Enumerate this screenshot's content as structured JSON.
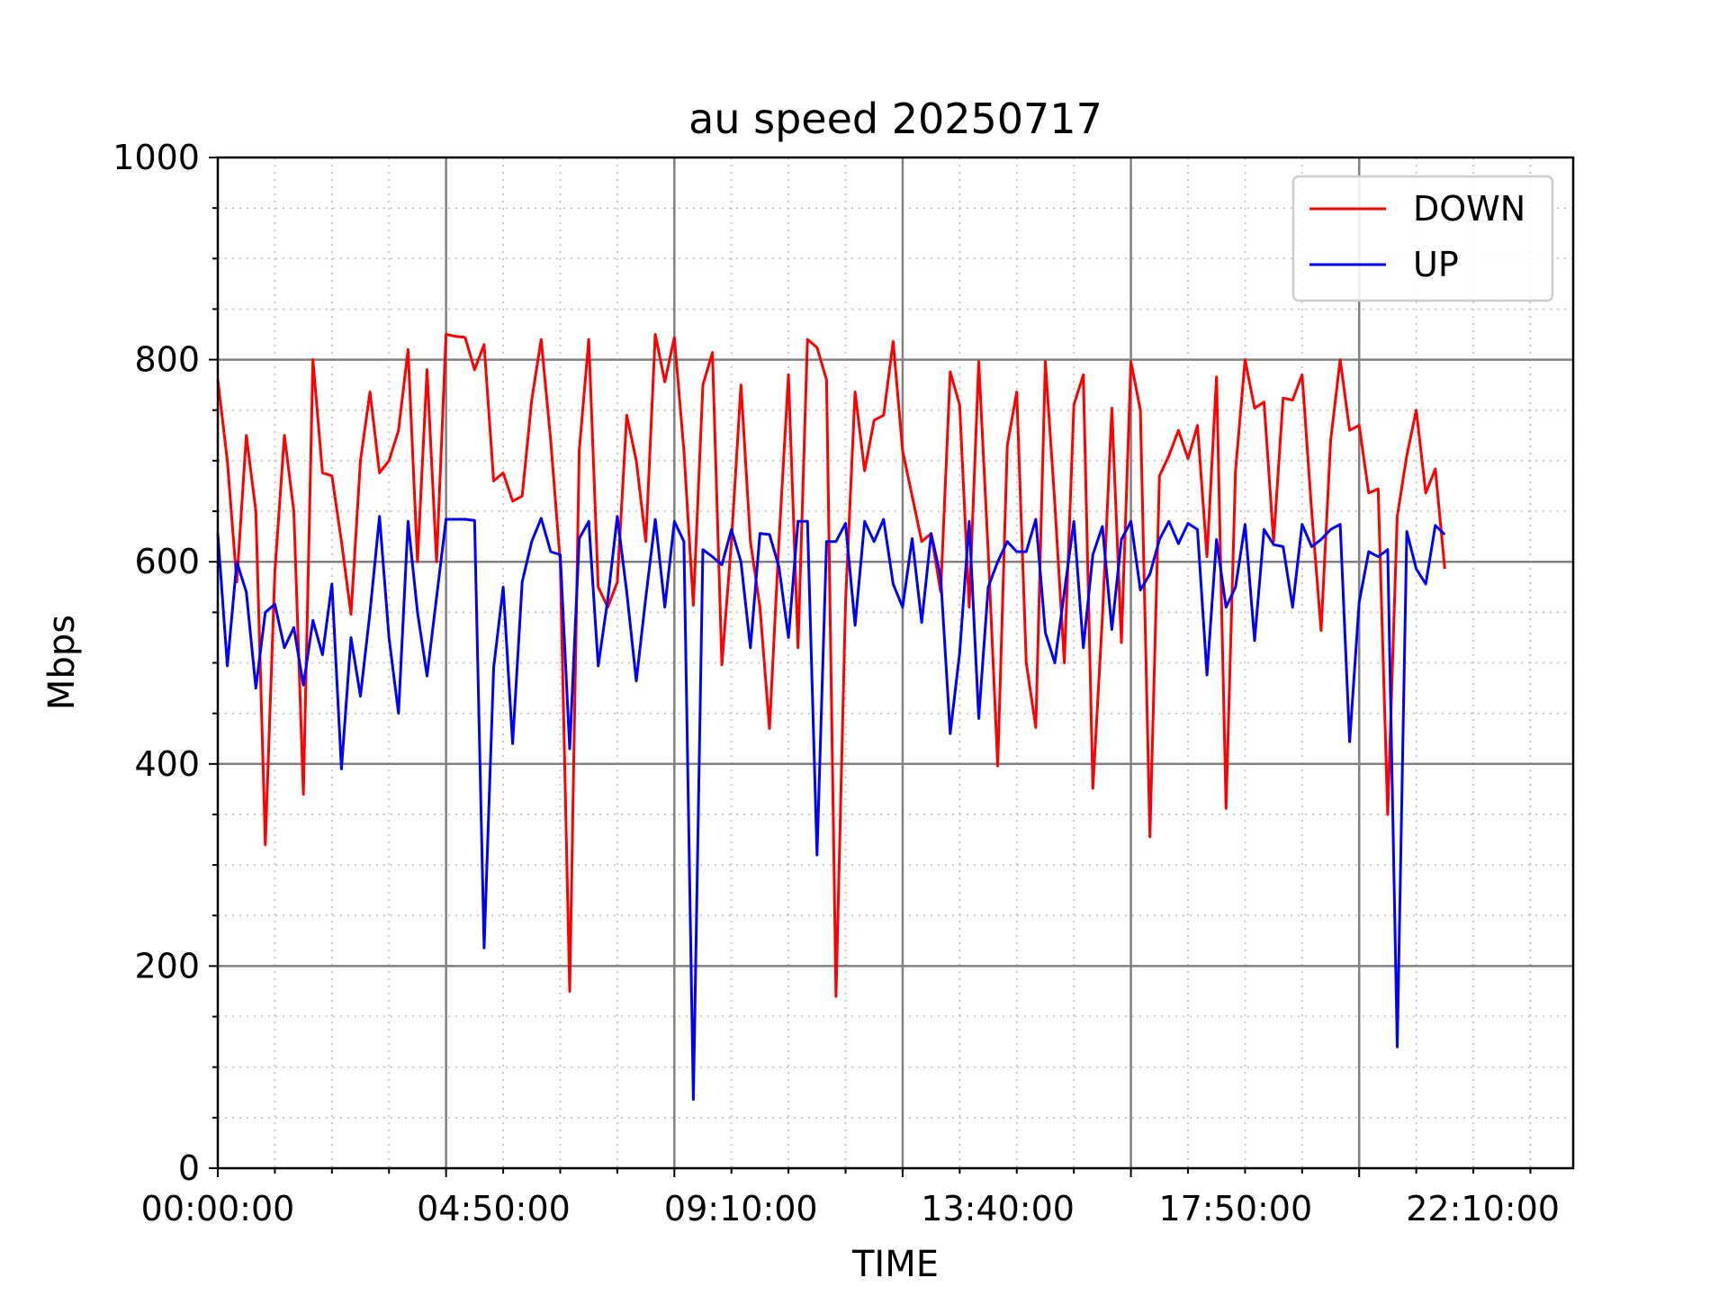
{
  "chart_data": {
    "type": "line",
    "title": "au speed 20250717",
    "xlabel": "TIME",
    "ylabel": "Mbps",
    "ylim": [
      0,
      1000
    ],
    "xlim": [
      0,
      1425
    ],
    "x_unit": "minutes since 00:00:00",
    "x_tick_labels": [
      "00:00:00",
      "04:50:00",
      "09:10:00",
      "13:40:00",
      "17:50:00",
      "22:10:00"
    ],
    "x_tick_minutes": [
      0,
      290,
      550,
      820,
      1070,
      1330
    ],
    "x_major_grid_minutes": [
      0,
      240,
      480,
      720,
      960,
      1200,
      1425
    ],
    "y_ticks": [
      0,
      200,
      400,
      600,
      800,
      1000
    ],
    "grid": true,
    "legend_placement": "upper-right",
    "colors": {
      "DOWN": "#ff0000",
      "UP": "#0000ff"
    },
    "series": [
      {
        "name": "DOWN",
        "x": [
          0,
          10,
          20,
          30,
          40,
          50,
          60,
          70,
          80,
          90,
          100,
          110,
          120,
          130,
          140,
          150,
          160,
          170,
          180,
          190,
          200,
          210,
          220,
          230,
          240,
          250,
          260,
          270,
          280,
          290,
          300,
          310,
          320,
          330,
          340,
          350,
          360,
          370,
          380,
          390,
          400,
          410,
          420,
          430,
          440,
          450,
          460,
          470,
          480,
          490,
          500,
          510,
          520,
          530,
          540,
          550,
          560,
          570,
          580,
          590,
          600,
          610,
          620,
          630,
          640,
          650,
          660,
          670,
          680,
          690,
          700,
          710,
          720,
          730,
          740,
          750,
          760,
          770,
          780,
          790,
          800,
          810,
          820,
          830,
          840,
          850,
          860,
          870,
          880,
          890,
          900,
          910,
          920,
          930,
          940,
          950,
          960,
          970,
          980,
          990,
          1000,
          1010,
          1020,
          1030,
          1040,
          1050,
          1060,
          1070,
          1080,
          1090,
          1100,
          1110,
          1120,
          1130,
          1140,
          1150,
          1160,
          1170,
          1180,
          1190,
          1200,
          1210,
          1220,
          1230,
          1240,
          1250,
          1260,
          1270,
          1280,
          1290
        ],
        "values": [
          780,
          700,
          580,
          725,
          650,
          320,
          590,
          725,
          650,
          370,
          800,
          688,
          685,
          620,
          548,
          700,
          768,
          688,
          700,
          730,
          810,
          600,
          790,
          600,
          825,
          823,
          822,
          790,
          815,
          680,
          688,
          660,
          665,
          760,
          820,
          720,
          600,
          175,
          710,
          820,
          575,
          555,
          580,
          745,
          700,
          620,
          825,
          778,
          822,
          710,
          557,
          775,
          807,
          498,
          620,
          775,
          620,
          555,
          435,
          620,
          785,
          515,
          820,
          812,
          780,
          170,
          560,
          768,
          690,
          740,
          745,
          818,
          710,
          665,
          620,
          628,
          570,
          788,
          755,
          555,
          798,
          610,
          398,
          715,
          768,
          500,
          436,
          798,
          658,
          500,
          755,
          785,
          376,
          545,
          752,
          520,
          798,
          750,
          328,
          685,
          705,
          730,
          702,
          735,
          605,
          783,
          356,
          690,
          800,
          752,
          758,
          620,
          762,
          760,
          785,
          650,
          532,
          720,
          800,
          730,
          735,
          668,
          672,
          350,
          645,
          705,
          750,
          668,
          692,
          593
        ]
      },
      {
        "name": "UP",
        "x": [
          0,
          10,
          20,
          30,
          40,
          50,
          60,
          70,
          80,
          90,
          100,
          110,
          120,
          130,
          140,
          150,
          160,
          170,
          180,
          190,
          200,
          210,
          220,
          230,
          240,
          250,
          260,
          270,
          280,
          290,
          300,
          310,
          320,
          330,
          340,
          350,
          360,
          370,
          380,
          390,
          400,
          410,
          420,
          430,
          440,
          450,
          460,
          470,
          480,
          490,
          500,
          510,
          520,
          530,
          540,
          550,
          560,
          570,
          580,
          590,
          600,
          610,
          620,
          630,
          640,
          650,
          660,
          670,
          680,
          690,
          700,
          710,
          720,
          730,
          740,
          750,
          760,
          770,
          780,
          790,
          800,
          810,
          820,
          830,
          840,
          850,
          860,
          870,
          880,
          890,
          900,
          910,
          920,
          930,
          940,
          950,
          960,
          970,
          980,
          990,
          1000,
          1010,
          1020,
          1030,
          1040,
          1050,
          1060,
          1070,
          1080,
          1090,
          1100,
          1110,
          1120,
          1130,
          1140,
          1150,
          1160,
          1170,
          1180,
          1190,
          1200,
          1210,
          1220,
          1230,
          1240,
          1250,
          1260,
          1270,
          1280,
          1290
        ],
        "values": [
          628,
          497,
          600,
          570,
          475,
          550,
          558,
          515,
          535,
          478,
          542,
          508,
          578,
          395,
          525,
          467,
          550,
          645,
          525,
          450,
          640,
          550,
          487,
          565,
          642,
          642,
          642,
          641,
          218,
          495,
          575,
          420,
          580,
          620,
          643,
          610,
          607,
          415,
          623,
          640,
          497,
          563,
          645,
          570,
          482,
          565,
          642,
          555,
          640,
          620,
          68,
          612,
          605,
          597,
          632,
          600,
          515,
          628,
          627,
          595,
          525,
          640,
          640,
          310,
          620,
          620,
          638,
          537,
          640,
          620,
          642,
          578,
          555,
          623,
          540,
          628,
          585,
          430,
          510,
          640,
          445,
          575,
          600,
          620,
          610,
          610,
          642,
          530,
          500,
          570,
          640,
          515,
          607,
          635,
          533,
          622,
          640,
          572,
          588,
          622,
          640,
          618,
          638,
          632,
          488,
          622,
          555,
          575,
          637,
          522,
          632,
          617,
          615,
          555,
          637,
          615,
          622,
          632,
          637,
          422,
          560,
          610,
          605,
          612,
          120,
          630,
          593,
          578,
          636,
          627
        ]
      }
    ]
  }
}
